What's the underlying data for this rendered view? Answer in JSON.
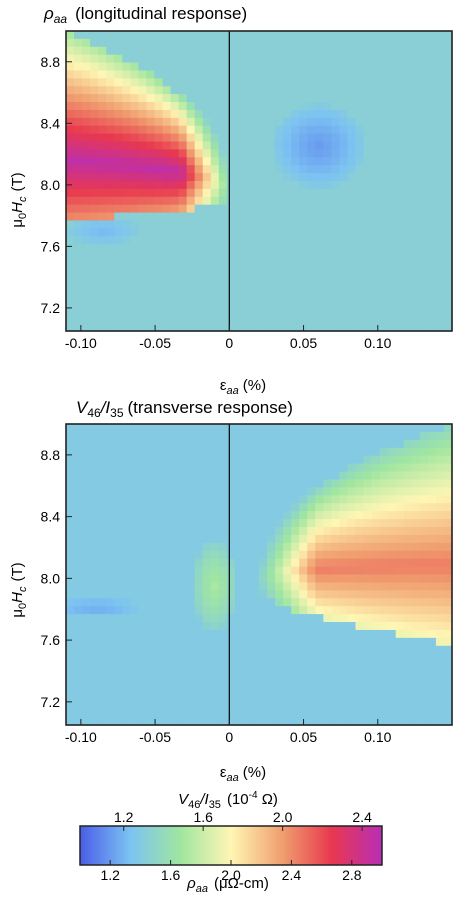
{
  "chart_data": [
    {
      "type": "heatmap",
      "title": "ρaa (longitudinal response)",
      "title_parts": {
        "symbol": "ρ",
        "sub": "aa",
        "rest": "(longitudinal response)"
      },
      "xlabel": "εaa (%)",
      "xlabel_parts": {
        "symbol": "ε",
        "sub": "aa",
        "rest": "(%)"
      },
      "ylabel": "μ0Hc (T)",
      "ylabel_parts": {
        "a": "μ",
        "a_sub": "0",
        "b": "H",
        "b_sub": "c",
        "rest": "(T)"
      },
      "xlim": [
        -0.11,
        0.15
      ],
      "ylim": [
        7.05,
        9.0
      ],
      "xticks": [
        -0.1,
        -0.05,
        0,
        0.05,
        0.1
      ],
      "xtick_labels": [
        "-0.10",
        "-0.05",
        "0",
        "0.05",
        "0.10"
      ],
      "yticks": [
        7.2,
        7.6,
        8.0,
        8.4,
        8.8
      ],
      "ytick_labels": [
        "7.2",
        "7.6",
        "8.0",
        "8.4",
        "8.8"
      ],
      "zero_strain_line": 0,
      "color_quantity": "ρaa (μΩ-cm)",
      "background_value": 1.45,
      "features": [
        {
          "kind": "arc_band",
          "side": "negative",
          "x_tip": 0.0,
          "y_tip": 7.95,
          "x_end": -0.11,
          "y_top": 8.95,
          "y_bottom": 7.82,
          "peak": 2.95
        },
        {
          "kind": "blob",
          "x": 0.06,
          "y": 8.25,
          "rx": 0.032,
          "ry": 0.28,
          "value": 1.2
        },
        {
          "kind": "blob",
          "x": -0.085,
          "y": 7.7,
          "rx": 0.025,
          "ry": 0.09,
          "value": 1.3
        }
      ]
    },
    {
      "type": "heatmap",
      "title": "V46/I35 (transverse response)",
      "title_parts": {
        "a": "V",
        "a_sub": "46",
        "b": "/I",
        "b_sub": "35",
        "rest": "(transverse response)"
      },
      "xlabel": "εaa (%)",
      "xlabel_parts": {
        "symbol": "ε",
        "sub": "aa",
        "rest": "(%)"
      },
      "ylabel": "μ0Hc (T)",
      "ylabel_parts": {
        "a": "μ",
        "a_sub": "0",
        "b": "H",
        "b_sub": "c",
        "rest": "(T)"
      },
      "xlim": [
        -0.11,
        0.15
      ],
      "ylim": [
        7.05,
        9.0
      ],
      "xticks": [
        -0.1,
        -0.05,
        0,
        0.05,
        0.1
      ],
      "xtick_labels": [
        "-0.10",
        "-0.05",
        "0",
        "0.05",
        "0.10"
      ],
      "yticks": [
        7.2,
        7.6,
        8.0,
        8.4,
        8.8
      ],
      "ytick_labels": [
        "7.2",
        "7.6",
        "8.0",
        "8.4",
        "8.8"
      ],
      "zero_strain_line": 0,
      "color_quantity": "V46/I35 (10^-4 Ω)",
      "background_value": 1.4,
      "features": [
        {
          "kind": "arc_band",
          "side": "positive",
          "x_tip": 0.02,
          "y_tip": 7.97,
          "x_end": 0.15,
          "y_top": 8.95,
          "y_bottom": 7.62,
          "peak": 2.45
        },
        {
          "kind": "blob",
          "x": -0.09,
          "y": 7.81,
          "rx": 0.03,
          "ry": 0.06,
          "value": 1.25
        },
        {
          "kind": "blob",
          "x": -0.01,
          "y": 7.95,
          "rx": 0.015,
          "ry": 0.3,
          "value": 1.7
        }
      ]
    },
    {
      "type": "colorbar",
      "colors": [
        "#4a5ee8",
        "#7cc3f2",
        "#a0e6a0",
        "#fff6b4",
        "#f0a070",
        "#e8384e",
        "#b82eb8"
      ],
      "top_title": "V46/I35 (10-4 Ω)",
      "top_title_parts": {
        "a": "V",
        "a_sub": "46",
        "b": "/I",
        "b_sub": "35",
        "unit_pre": "(10",
        "unit_sup": "-4",
        "unit_post": " Ω)"
      },
      "top_ticks": [
        1.2,
        1.6,
        2.0,
        2.4
      ],
      "top_tick_labels": [
        "1.2",
        "1.6",
        "2.0",
        "2.4"
      ],
      "top_range": [
        0.98,
        2.5
      ],
      "bottom_ticks": [
        1.2,
        1.6,
        2.0,
        2.4,
        2.8
      ],
      "bottom_tick_labels": [
        "1.2",
        "1.6",
        "2.0",
        "2.4",
        "2.8"
      ],
      "bottom_range": [
        1.0,
        3.0
      ],
      "bottom_title": "ρaa (μΩ-cm)",
      "bottom_title_parts": {
        "symbol": "ρ",
        "sub": "aa",
        "rest": "(μΩ-cm)"
      }
    }
  ]
}
